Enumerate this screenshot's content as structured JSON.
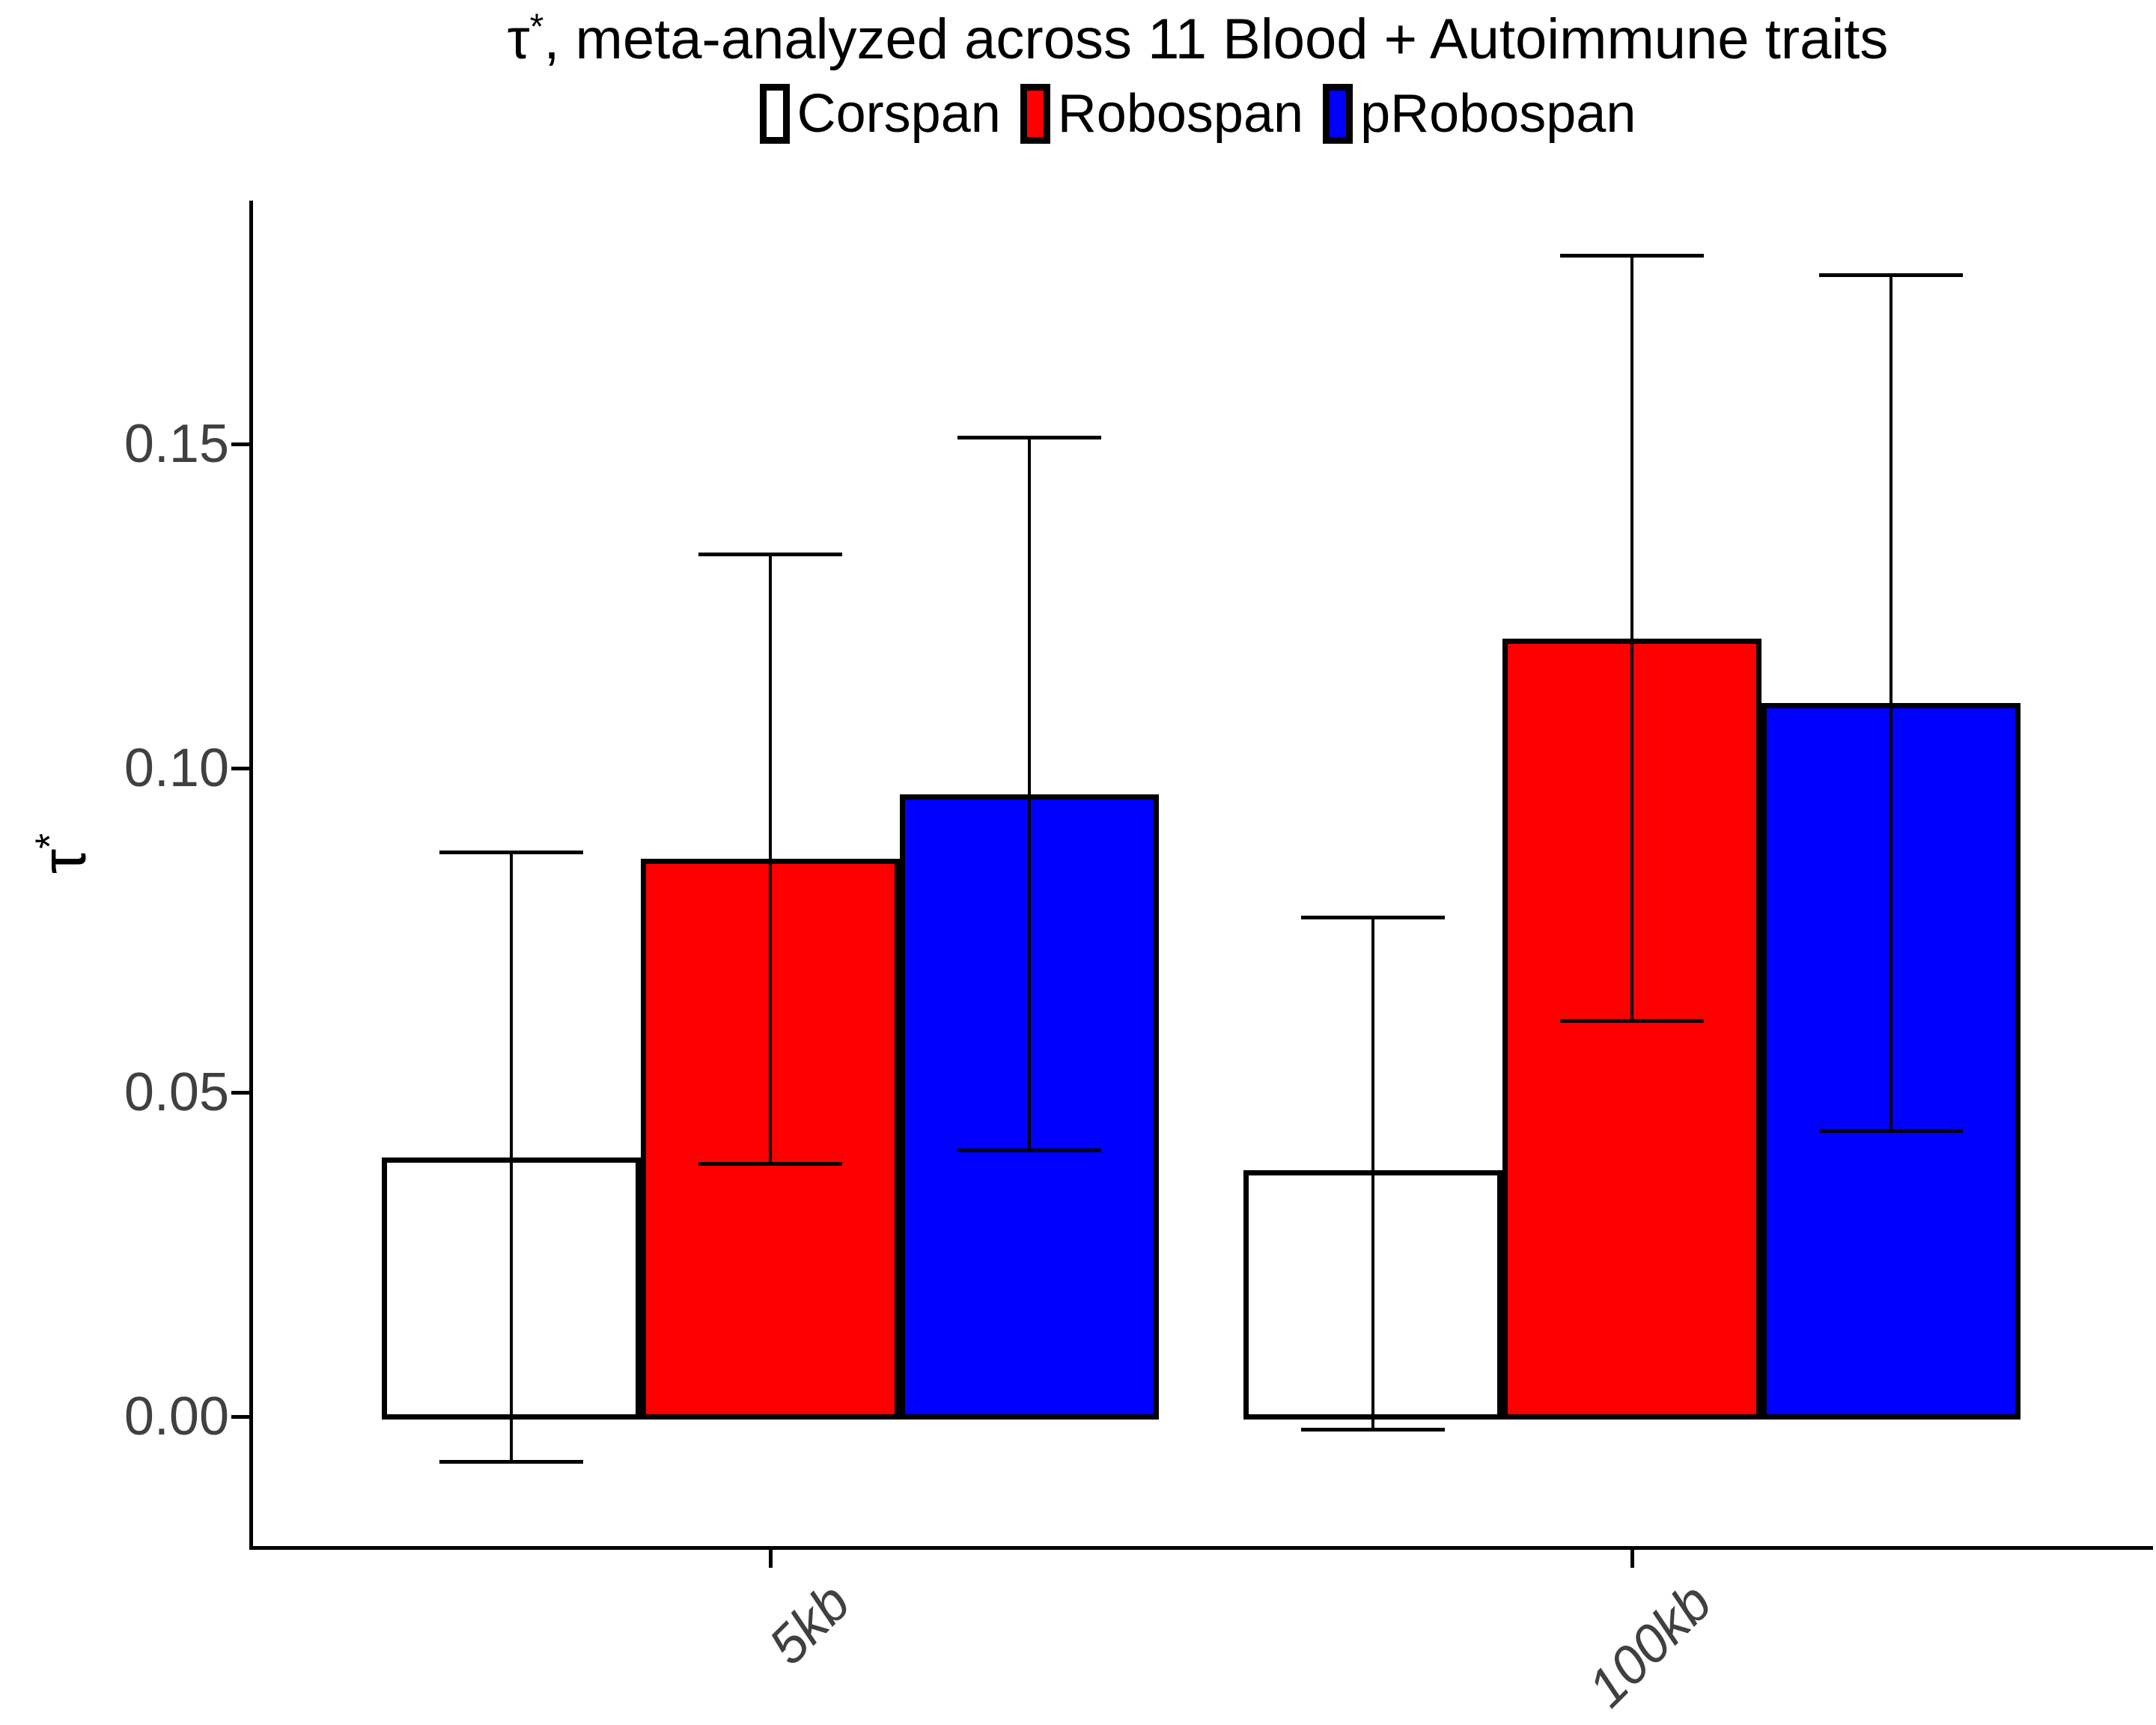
{
  "title": {
    "tau": "τ",
    "sup": "*",
    "rest": ", meta-analyzed across 11 Blood + Autoimmune traits"
  },
  "legend": [
    {
      "label": "Corspan",
      "color": "#FFFFFF"
    },
    {
      "label": "Robospan",
      "color": "#FF0000"
    },
    {
      "label": "pRobospan",
      "color": "#0000FF"
    }
  ],
  "y_axis": {
    "tau": "τ",
    "sup": "*"
  },
  "chart_data": {
    "type": "bar",
    "categories": [
      "5kb",
      "100kb"
    ],
    "series": [
      {
        "name": "Corspan",
        "color": "#FFFFFF",
        "values": [
          0.04,
          0.038
        ],
        "ci_low": [
          -0.007,
          -0.002
        ],
        "ci_high": [
          0.087,
          0.077
        ]
      },
      {
        "name": "Robospan",
        "color": "#FF0000",
        "values": [
          0.086,
          0.12
        ],
        "ci_low": [
          0.039,
          0.061
        ],
        "ci_high": [
          0.133,
          0.179
        ]
      },
      {
        "name": "pRobospan",
        "color": "#0000FF",
        "values": [
          0.096,
          0.11
        ],
        "ci_low": [
          0.041,
          0.044
        ],
        "ci_high": [
          0.151,
          0.176
        ]
      }
    ],
    "title": "τ*, meta-analyzed across 11 Blood + Autoimmune traits",
    "xlabel": "",
    "ylabel": "τ*",
    "yticks": [
      0.0,
      0.05,
      0.1,
      0.15
    ],
    "ylim": [
      -0.021,
      0.1875
    ],
    "grid": false,
    "legend_position": "top",
    "error_bars": true
  }
}
